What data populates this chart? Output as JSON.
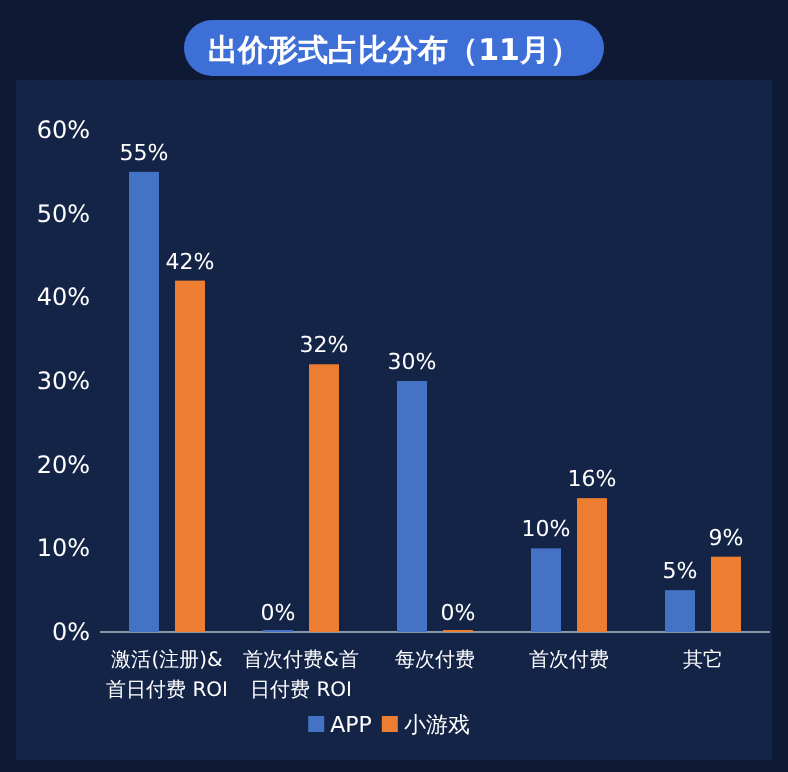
{
  "chart_data": {
    "type": "bar",
    "title": "出价形式占比分布（11月）",
    "categories": [
      "激活(注册)&首日付费 ROI",
      "首次付费&首日付费 ROI",
      "每次付费",
      "首次付费",
      "其它"
    ],
    "series": [
      {
        "name": "APP",
        "color": "#4472c4",
        "values": [
          55,
          0,
          30,
          10,
          5
        ],
        "value_labels": [
          "55%",
          "0%",
          "30%",
          "10%",
          "5%"
        ]
      },
      {
        "name": "小游戏",
        "color": "#ed7d31",
        "values": [
          42,
          32,
          0,
          16,
          9
        ],
        "value_labels": [
          "42%",
          "32%",
          "0%",
          "16%",
          "9%"
        ]
      }
    ],
    "ylim": [
      0,
      60
    ],
    "yticks": [
      {
        "value": 0,
        "label": "0%"
      },
      {
        "value": 10,
        "label": "10%"
      },
      {
        "value": 20,
        "label": "20%"
      },
      {
        "value": 30,
        "label": "30%"
      },
      {
        "value": 40,
        "label": "40%"
      },
      {
        "value": 50,
        "label": "50%"
      },
      {
        "value": 60,
        "label": "60%"
      }
    ],
    "legend": "bottom"
  }
}
